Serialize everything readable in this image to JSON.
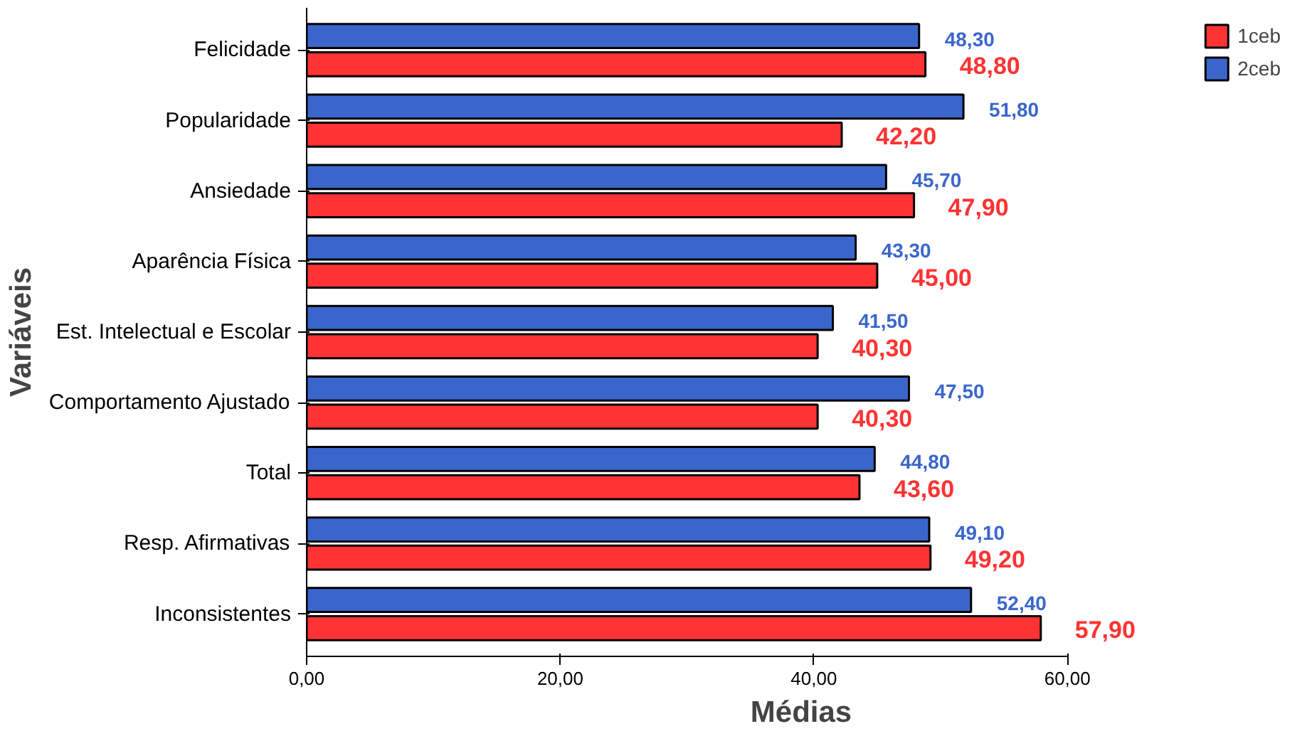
{
  "chart_data": {
    "type": "bar",
    "orientation": "horizontal",
    "xlabel": "Médias",
    "ylabel": "Variáveis",
    "categories": [
      "Felicidade",
      "Popularidade",
      "Ansiedade",
      "Aparência Física",
      "Est. Intelectual e Escolar",
      "Comportamento Ajustado",
      "Total",
      "Resp. Afirmativas",
      "Inconsistentes"
    ],
    "series": [
      {
        "name": "1ceb",
        "color": "#ff3333",
        "values": [
          48.8,
          42.2,
          47.9,
          45.0,
          40.3,
          40.3,
          43.6,
          49.2,
          57.9
        ],
        "value_labels": [
          "48,80",
          "42,20",
          "47,90",
          "45,00",
          "40,30",
          "40,30",
          "43,60",
          "49,20",
          "57,90"
        ]
      },
      {
        "name": "2ceb",
        "color": "#3a66cc",
        "values": [
          48.3,
          51.8,
          45.7,
          43.3,
          41.5,
          47.5,
          44.8,
          49.1,
          52.4
        ],
        "value_labels": [
          "48,30",
          "51,80",
          "45,70",
          "43,30",
          "41,50",
          "47,50",
          "44,80",
          "49,10",
          "52,40"
        ]
      }
    ],
    "xlim": [
      0,
      60
    ],
    "xticks": [
      {
        "value": 0,
        "label": "0,00"
      },
      {
        "value": 20,
        "label": "20,00"
      },
      {
        "value": 40,
        "label": "40,00"
      },
      {
        "value": 60,
        "label": "60,00"
      }
    ],
    "grid": false,
    "legend": "top right"
  }
}
